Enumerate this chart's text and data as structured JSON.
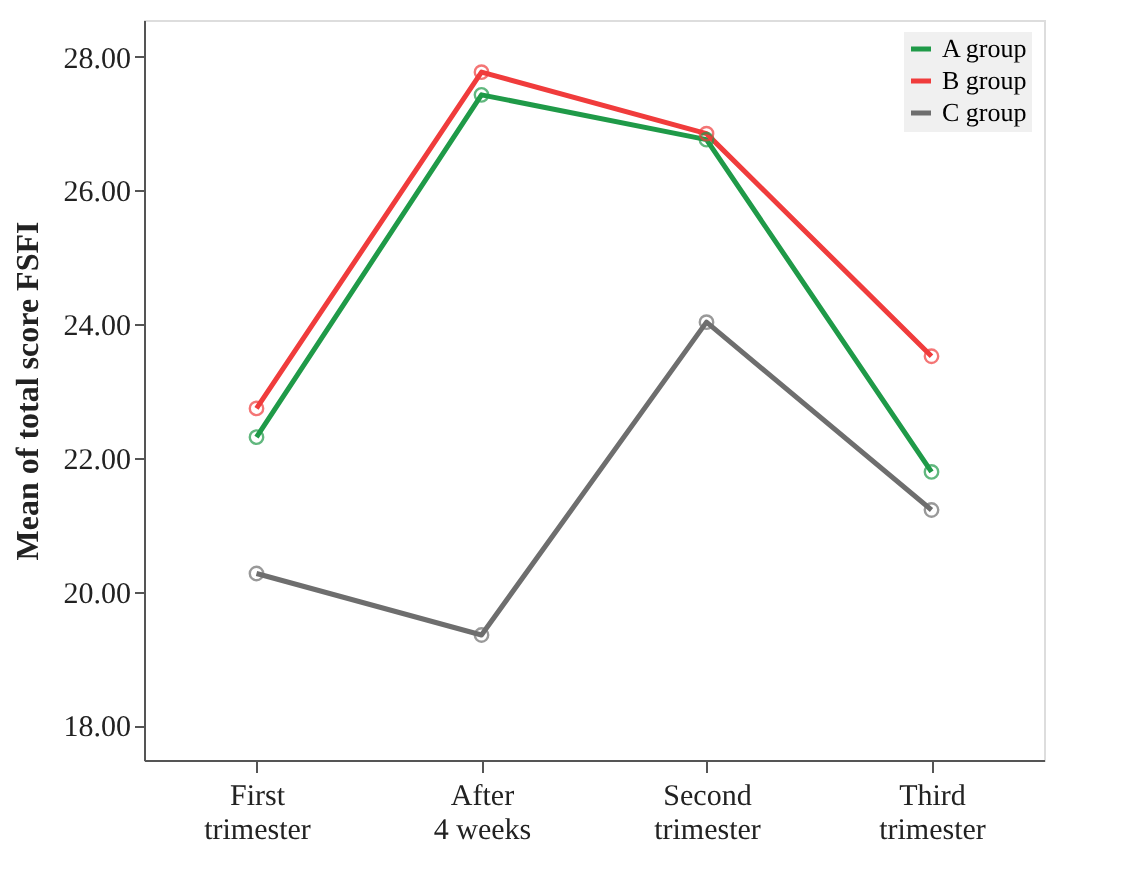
{
  "chart_data": {
    "type": "line",
    "ylabel": "Mean of total score FSFI",
    "categories": [
      "First trimester",
      "After 4 weeks",
      "Second trimester",
      "Third trimester"
    ],
    "series": [
      {
        "name": "A group",
        "color": "#1f9a48",
        "values": [
          22.31,
          27.43,
          26.76,
          21.79
        ]
      },
      {
        "name": "B group",
        "color": "#f03c3c",
        "values": [
          22.74,
          27.77,
          26.85,
          23.52
        ]
      },
      {
        "name": "C group",
        "color": "#6e6e6e",
        "values": [
          20.27,
          19.35,
          24.03,
          21.22
        ]
      }
    ],
    "ylim": [
      17.48,
      28.55
    ],
    "yticks": [
      {
        "value": 18,
        "label": "18.00"
      },
      {
        "value": 20,
        "label": "20.00"
      },
      {
        "value": 22,
        "label": "22.00"
      },
      {
        "value": 24,
        "label": "24.00"
      },
      {
        "value": 26,
        "label": "26.00"
      },
      {
        "value": 28,
        "label": "28.00"
      }
    ],
    "grid": false,
    "legend": "top right",
    "marker": "circle",
    "line_style": "solid"
  }
}
